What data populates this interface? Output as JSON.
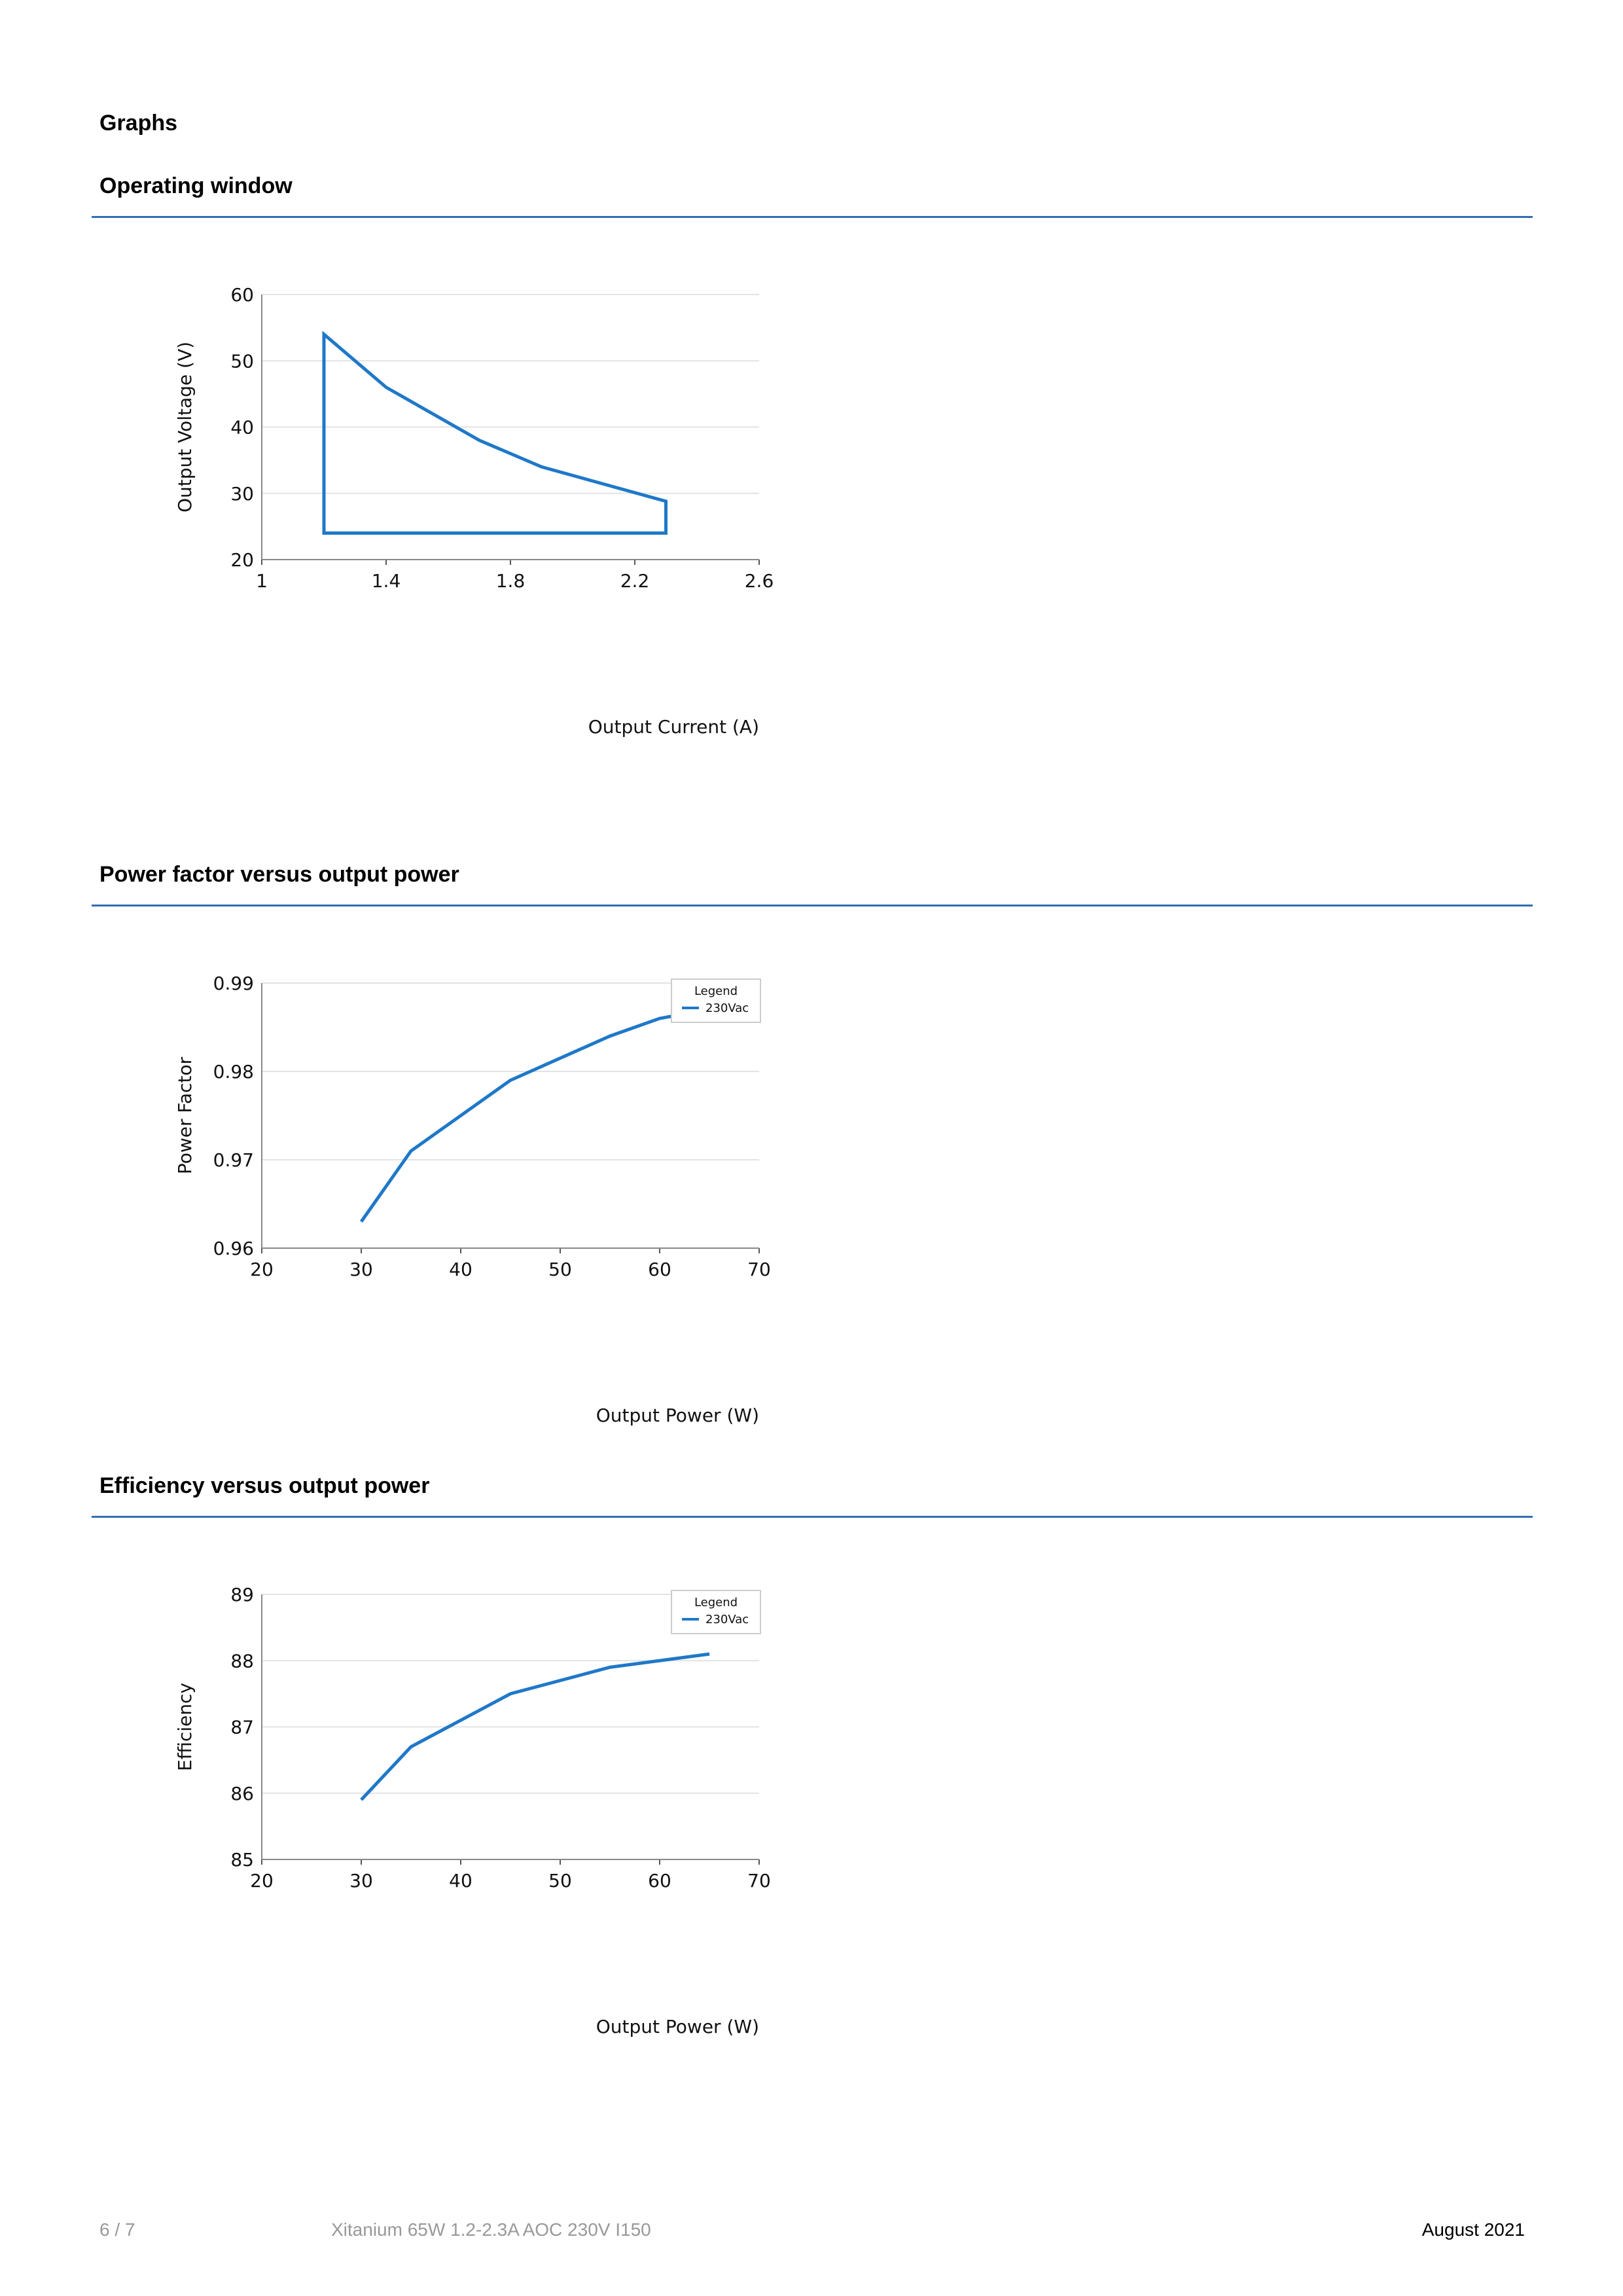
{
  "section_title": "Graphs",
  "charts": [
    {
      "heading": "Operating window",
      "chart_data": {
        "type": "line",
        "xlabel": "Output Current (A)",
        "ylabel": "Output Voltage (V)",
        "xlim": [
          1,
          2.6
        ],
        "ylim": [
          20,
          60
        ],
        "xticks": [
          1,
          1.4,
          1.8,
          2.2,
          2.6
        ],
        "xtick_labels": [
          "1",
          "1.4",
          "1.8",
          "2.2",
          "2.6"
        ],
        "yticks": [
          20,
          30,
          40,
          50,
          60
        ],
        "ytick_labels": [
          "20",
          "30",
          "40",
          "50",
          "60"
        ],
        "grid": true,
        "legend": null,
        "color": "#1f78c8",
        "closed": true,
        "series": [
          {
            "x": [
              1.2,
              1.2,
              1.4,
              1.7,
              1.9,
              2.3,
              2.3
            ],
            "y": [
              24,
              54,
              46,
              38,
              34,
              28.8,
              24
            ]
          }
        ]
      }
    },
    {
      "heading": "Power factor versus output power",
      "chart_data": {
        "type": "line",
        "xlabel": "Output Power (W)",
        "ylabel": "Power Factor",
        "xlim": [
          20,
          70
        ],
        "ylim": [
          0.96,
          0.99
        ],
        "xticks": [
          20,
          30,
          40,
          50,
          60,
          70
        ],
        "xtick_labels": [
          "20",
          "30",
          "40",
          "50",
          "60",
          "70"
        ],
        "yticks": [
          0.96,
          0.97,
          0.98,
          0.99
        ],
        "ytick_labels": [
          "0.96",
          "0.97",
          "0.98",
          "0.99"
        ],
        "grid": true,
        "legend": {
          "title": "Legend",
          "placement": "top-right"
        },
        "color": "#1f78c8",
        "closed": false,
        "series": [
          {
            "name": "230Vac",
            "x": [
              30,
              35,
              45,
              55,
              60,
              65
            ],
            "y": [
              0.963,
              0.971,
              0.979,
              0.984,
              0.986,
              0.987
            ]
          }
        ]
      }
    },
    {
      "heading": "Efficiency versus output power",
      "chart_data": {
        "type": "line",
        "xlabel": "Output Power (W)",
        "ylabel": "Efficiency",
        "xlim": [
          20,
          70
        ],
        "ylim": [
          85,
          89
        ],
        "xticks": [
          20,
          30,
          40,
          50,
          60,
          70
        ],
        "xtick_labels": [
          "20",
          "30",
          "40",
          "50",
          "60",
          "70"
        ],
        "yticks": [
          85,
          86,
          87,
          88,
          89
        ],
        "ytick_labels": [
          "85",
          "86",
          "87",
          "88",
          "89"
        ],
        "grid": true,
        "legend": {
          "title": "Legend",
          "placement": "top-right"
        },
        "color": "#1f78c8",
        "closed": false,
        "series": [
          {
            "name": "230Vac",
            "x": [
              30,
              35,
              45,
              55,
              65
            ],
            "y": [
              85.9,
              86.7,
              87.5,
              87.9,
              88.1
            ]
          }
        ]
      }
    }
  ],
  "footer": {
    "page": "6 / 7",
    "product": "Xitanium 65W 1.2-2.3A AOC 230V I150",
    "date": "August 2021"
  },
  "colors": {
    "accent": "#2f6fb1",
    "series": "#1f78c8",
    "grid": "#e3e3e3",
    "footer_gray": "#999999"
  }
}
